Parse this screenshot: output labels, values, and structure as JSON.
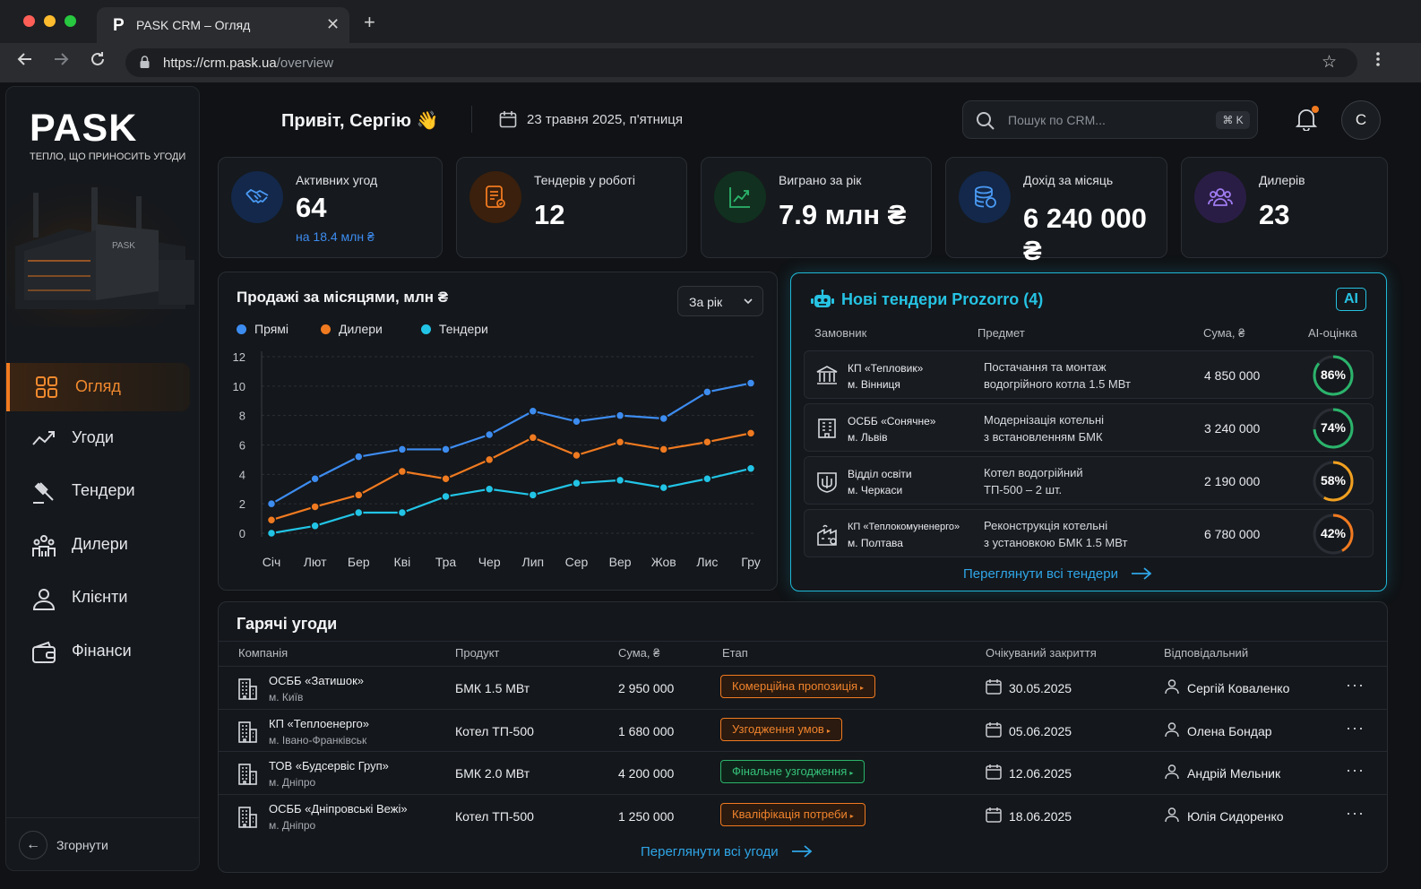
{
  "browser": {
    "tab_title": "PASK CRM – Огляд",
    "tab_logo": "P",
    "url_host": "https://crm.pask.ua",
    "url_path": "/overview"
  },
  "sidebar": {
    "logo": "PASK",
    "tagline": "ТЕПЛО, ЩО ПРИНОСИТЬ УГОДИ",
    "hero_label": "PASK",
    "items": [
      {
        "label": "Огляд",
        "icon": "grid-icon",
        "active": true
      },
      {
        "label": "Угоди",
        "icon": "trend-icon",
        "active": false
      },
      {
        "label": "Тендери",
        "icon": "gavel-icon",
        "active": false
      },
      {
        "label": "Дилери",
        "icon": "dealers-icon",
        "active": false
      },
      {
        "label": "Клієнти",
        "icon": "user-icon",
        "active": false
      },
      {
        "label": "Фінанси",
        "icon": "wallet-icon",
        "active": false
      }
    ],
    "collapse_label": "Згорнути"
  },
  "header": {
    "greeting": "Привіт, Сергію 👋",
    "date": "23 травня 2025, п'ятниця",
    "search_placeholder": "Пошук по CRM...",
    "search_shortcut": "⌘ K",
    "avatar": "C"
  },
  "kpis": [
    {
      "title": "Активних угод",
      "value": "64",
      "sub": "на 18.4 млн ₴",
      "icon": "handshake-icon",
      "color": "#3d8cf0"
    },
    {
      "title": "Тендерів у роботі",
      "value": "12",
      "sub": "",
      "icon": "document-icon",
      "color": "#f07a20"
    },
    {
      "title": "Виграно за рік",
      "value": "7.9 млн ₴",
      "sub": "",
      "icon": "growth-icon",
      "color": "#2bb36b"
    },
    {
      "title": "Дохід за місяць",
      "value": "6 240 000 ₴",
      "sub": "",
      "icon": "coins-icon",
      "color": "#3d8cf0"
    },
    {
      "title": "Дилерів",
      "value": "23",
      "sub": "",
      "icon": "team-icon",
      "color": "#9a6cf0"
    }
  ],
  "sales": {
    "title": "Продажі за місяцями, млн ₴",
    "period": "За рік"
  },
  "chart_data": {
    "type": "line",
    "title": "Продажі за місяцями, млн ₴",
    "categories": [
      "Січ",
      "Лют",
      "Бер",
      "Кві",
      "Тра",
      "Чер",
      "Лип",
      "Сер",
      "Вер",
      "Жов",
      "Лис",
      "Гру"
    ],
    "ylim": [
      0,
      12
    ],
    "yticks": [
      0,
      2,
      4,
      6,
      8,
      10,
      12
    ],
    "grid": true,
    "legend": "top-left",
    "series": [
      {
        "name": "Прямі",
        "color": "#3d8cf0",
        "values": [
          2.0,
          3.7,
          5.2,
          5.7,
          5.7,
          6.7,
          8.3,
          7.6,
          8.0,
          7.8,
          9.6,
          10.2
        ]
      },
      {
        "name": "Дилери",
        "color": "#f07a20",
        "values": [
          0.9,
          1.8,
          2.6,
          4.2,
          3.7,
          5.0,
          6.5,
          5.3,
          6.2,
          5.7,
          6.2,
          6.8
        ]
      },
      {
        "name": "Тендери",
        "color": "#22c4e6",
        "values": [
          0.0,
          0.5,
          1.4,
          1.4,
          2.5,
          3.0,
          2.6,
          3.4,
          3.6,
          3.1,
          3.7,
          4.4
        ]
      }
    ]
  },
  "tenders": {
    "title": "Нові тендери Prozorro (4)",
    "badge": "AI",
    "headers": [
      "Замовник",
      "Предмет",
      "Сума, ₴",
      "AI-оцінка"
    ],
    "rows": [
      {
        "customer": "КП «Тепловик»",
        "city": "м. Вінниця",
        "subject1": "Постачання та монтаж",
        "subject2": "водогрійного котла 1.5 МВт",
        "sum": "4 850 000",
        "score": "86%",
        "score_value": 86,
        "color": "#2bb36b"
      },
      {
        "customer": "ОСББ «Сонячне»",
        "city": "м. Львів",
        "subject1": "Модернізація котельні",
        "subject2": "з встановленням БМК",
        "sum": "3 240 000",
        "score": "74%",
        "score_value": 74,
        "color": "#2bb36b"
      },
      {
        "customer": "Відділ освіти",
        "city": "м. Черкаси",
        "subject1": "Котел водогрійний",
        "subject2": "ТП-500 – 2 шт.",
        "sum": "2 190 000",
        "score": "58%",
        "score_value": 58,
        "color": "#f0a020"
      },
      {
        "customer": "КП «Теплокомуненерго»",
        "city": "м. Полтава",
        "subject1": "Реконструкція котельні",
        "subject2": "з установкою БМК 1.5 МВт",
        "sum": "6 780 000",
        "score": "42%",
        "score_value": 42,
        "color": "#f07a20"
      }
    ],
    "view_all": "Переглянути всі тендери"
  },
  "deals": {
    "title": "Гарячі угоди",
    "headers": [
      "Компанія",
      "Продукт",
      "Сума, ₴",
      "Етап",
      "Очікуваний закриття",
      "Відповідальний"
    ],
    "rows": [
      {
        "company": "ОСББ «Затишок»",
        "city": "м. Київ",
        "product": "БМК 1.5 МВт",
        "sum": "2 950 000",
        "stage": "Комерційна пропозиція",
        "stage_color": "orange",
        "date": "30.05.2025",
        "owner": "Сергій Коваленко"
      },
      {
        "company": "КП «Теплоенерго»",
        "city": "м. Івано-Франківськ",
        "product": "Котел ТП-500",
        "sum": "1 680 000",
        "stage": "Узгодження умов",
        "stage_color": "orange",
        "date": "05.06.2025",
        "owner": "Олена Бондар"
      },
      {
        "company": "ТОВ «Будсервіс Груп»",
        "city": "м. Дніпро",
        "product": "БМК 2.0 МВт",
        "sum": "4 200 000",
        "stage": "Фінальне узгодження",
        "stage_color": "green",
        "date": "12.06.2025",
        "owner": "Андрій Мельник"
      },
      {
        "company": "ОСББ «Дніпровські Вежі»",
        "city": "м. Дніпро",
        "product": "Котел ТП-500",
        "sum": "1 250 000",
        "stage": "Кваліфікація потреби",
        "stage_color": "orange",
        "date": "18.06.2025",
        "owner": "Юлія Сидоренко"
      }
    ],
    "view_all": "Переглянути всі угоди"
  }
}
